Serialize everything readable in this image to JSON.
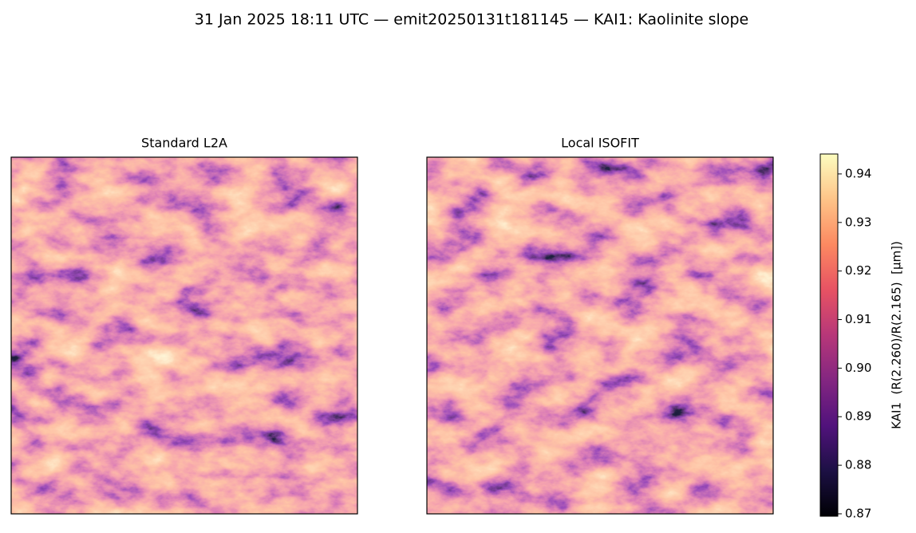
{
  "chart_data": {
    "type": "image",
    "title": "31 Jan 2025 18:11 UTC — emit20250131t181145 — KAI1: Kaolinite slope",
    "panels": [
      {
        "title": "Standard L2A"
      },
      {
        "title": "Local ISOFIT"
      }
    ],
    "colorbar": {
      "label": "KAI1  (R(2.260)/R(2.165)  [µm])",
      "colormap": "magma",
      "lim": [
        0.8695,
        0.9441
      ],
      "ticks": [
        0.87,
        0.88,
        0.89,
        {
          "value": 0.9,
          "label": "0.90"
        },
        0.91,
        0.92,
        0.93,
        0.94
      ]
    }
  }
}
